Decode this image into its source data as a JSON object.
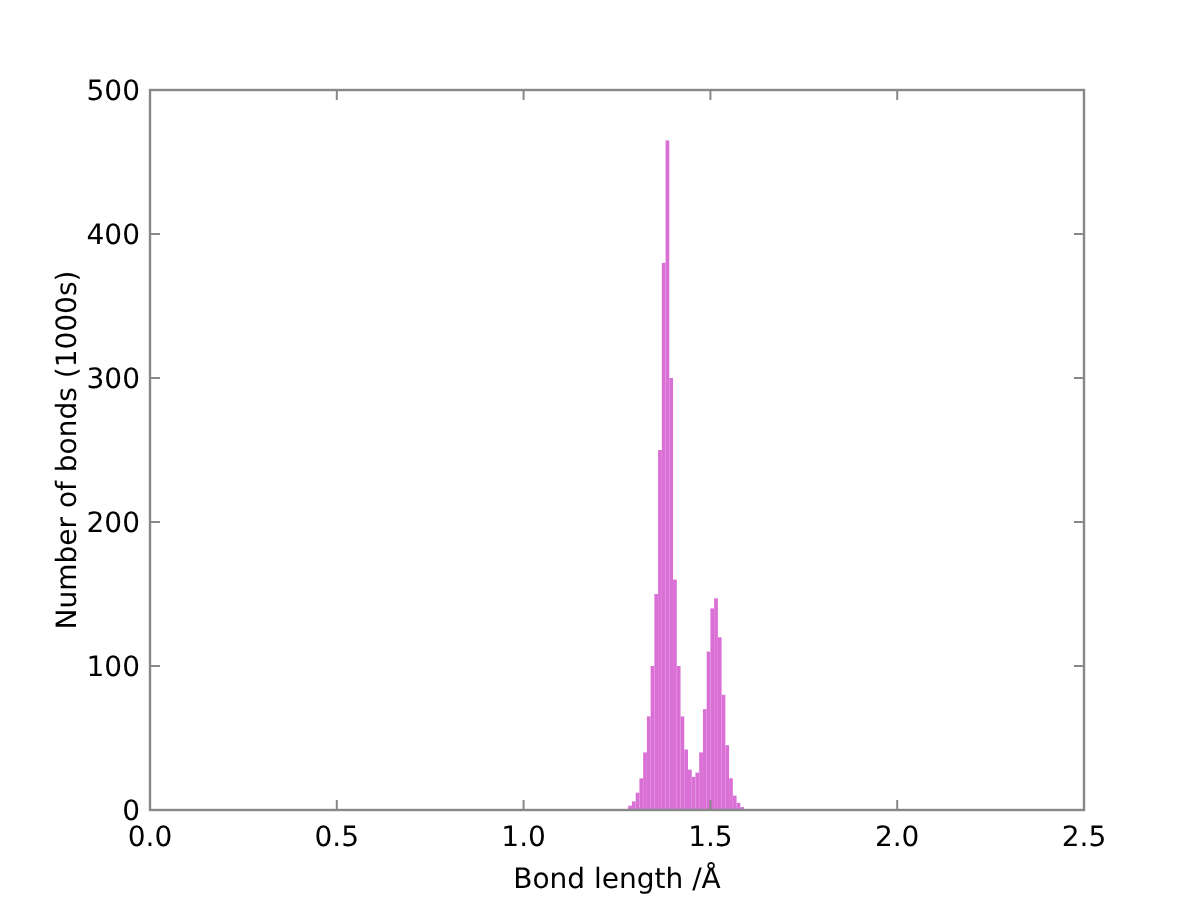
{
  "chart_data": {
    "type": "histogram",
    "xlabel": "Bond length /Å",
    "ylabel": "Number of bonds (1000s)",
    "color": "#da70d6",
    "bins": [
      1.28,
      1.29,
      1.3,
      1.31,
      1.32,
      1.33,
      1.34,
      1.35,
      1.36,
      1.37,
      1.38,
      1.39,
      1.4,
      1.41,
      1.42,
      1.43,
      1.44,
      1.45,
      1.46,
      1.47,
      1.48,
      1.49,
      1.5,
      1.51,
      1.52,
      1.53,
      1.54,
      1.55,
      1.56,
      1.57,
      1.58,
      1.59
    ],
    "values": [
      3,
      6,
      12,
      22,
      40,
      65,
      100,
      150,
      250,
      380,
      465,
      300,
      160,
      100,
      65,
      42,
      28,
      23,
      26,
      40,
      70,
      110,
      140,
      147,
      120,
      80,
      45,
      22,
      10,
      5,
      2
    ],
    "xlim": [
      0,
      2.5
    ],
    "ylim": [
      0,
      500
    ],
    "xticks": [
      {
        "value": 0,
        "label": "0.0"
      },
      {
        "value": 0.5,
        "label": "0.5"
      },
      {
        "value": 1,
        "label": "1.0"
      },
      {
        "value": 1.5,
        "label": "1.5"
      },
      {
        "value": 2,
        "label": "2.0"
      },
      {
        "value": 2.5,
        "label": "2.5"
      }
    ],
    "yticks": [
      0,
      100,
      200,
      300,
      400,
      500
    ],
    "grid": false
  }
}
